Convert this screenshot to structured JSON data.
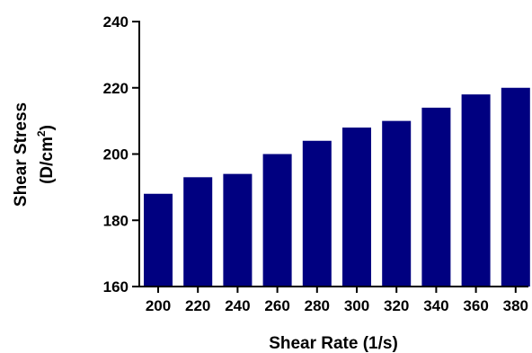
{
  "chart_data": {
    "type": "bar",
    "title": "",
    "xlabel": "Shear Rate (1/s)",
    "ylabel_line1": "Shear Stress",
    "ylabel_line2_prefix": "(D/cm",
    "ylabel_line2_sup": "2",
    "ylabel_line2_suffix": ")",
    "categories": [
      "200",
      "220",
      "240",
      "260",
      "280",
      "300",
      "320",
      "340",
      "360",
      "380"
    ],
    "values": [
      188,
      193,
      194,
      200,
      204,
      208,
      210,
      214,
      218,
      220
    ],
    "ylim": [
      160,
      240
    ],
    "yticks": [
      160,
      180,
      200,
      220,
      240
    ],
    "grid": false,
    "bar_color": "#000080"
  }
}
